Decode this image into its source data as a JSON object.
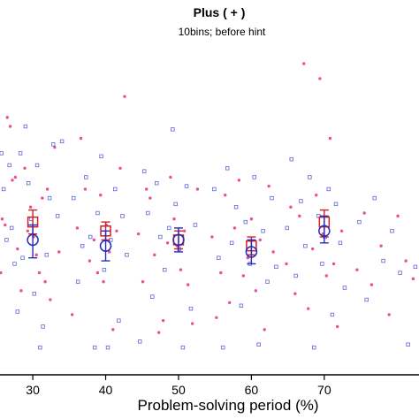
{
  "chart_data": {
    "type": "scatter",
    "title": "Plus ( + )",
    "subtitle": "10bins; before hint",
    "xlabel": "Problem-solving period (%)",
    "ylabel": "",
    "xlim": [
      25.5,
      83
    ],
    "ylim": [
      0,
      1
    ],
    "x_ticks": [
      "30",
      "40",
      "50",
      "60",
      "70"
    ],
    "x_tick_values": [
      30,
      40,
      50,
      60,
      70
    ],
    "grid": false,
    "colors": {
      "red": "#e8307a",
      "blue": "#3540c8",
      "red_marker": "#d0202a",
      "blue_marker": "#2a2ab8"
    },
    "series": [
      {
        "color": "red",
        "marker": "square",
        "summary": [
          {
            "x": 30,
            "y": 0.47,
            "low": 0.43,
            "high": 0.51
          },
          {
            "x": 40,
            "y": 0.44,
            "low": 0.41,
            "high": 0.47
          },
          {
            "x": 50,
            "y": 0.41,
            "low": 0.38,
            "high": 0.44
          },
          {
            "x": 60,
            "y": 0.39,
            "low": 0.36,
            "high": 0.42
          },
          {
            "x": 70,
            "y": 0.47,
            "low": 0.42,
            "high": 0.51
          }
        ],
        "points": [
          [
            25.6,
            0.3
          ],
          [
            25.8,
            0.48
          ],
          [
            26.2,
            0.46
          ],
          [
            26.5,
            0.82
          ],
          [
            26.9,
            0.79
          ],
          [
            27.2,
            0.61
          ],
          [
            27.6,
            0.62
          ],
          [
            27.9,
            0.38
          ],
          [
            28.4,
            0.24
          ],
          [
            28.9,
            0.65
          ],
          [
            29.3,
            0.44
          ],
          [
            29.7,
            0.52
          ],
          [
            30.1,
            0.42
          ],
          [
            30.5,
            0.36
          ],
          [
            30.9,
            0.3
          ],
          [
            31.3,
            0.55
          ],
          [
            31.7,
            0.27
          ],
          [
            32.0,
            0.58
          ],
          [
            32.4,
            0.21
          ],
          [
            33.0,
            0.72
          ],
          [
            33.6,
            0.37
          ],
          [
            35.4,
            0.16
          ],
          [
            36.1,
            0.45
          ],
          [
            36.6,
            0.75
          ],
          [
            37.2,
            0.58
          ],
          [
            37.8,
            0.34
          ],
          [
            38.4,
            0.41
          ],
          [
            38.9,
            0.3
          ],
          [
            39.3,
            0.56
          ],
          [
            39.7,
            0.27
          ],
          [
            40.1,
            0.46
          ],
          [
            40.5,
            0.37
          ],
          [
            41.0,
            0.11
          ],
          [
            41.5,
            0.44
          ],
          [
            42.0,
            0.65
          ],
          [
            42.6,
            0.89
          ],
          [
            44.5,
            0.43
          ],
          [
            45.1,
            0.27
          ],
          [
            45.6,
            0.58
          ],
          [
            46.1,
            0.55
          ],
          [
            46.7,
            0.36
          ],
          [
            47.3,
            0.1
          ],
          [
            47.9,
            0.14
          ],
          [
            48.5,
            0.4
          ],
          [
            48.9,
            0.62
          ],
          [
            49.4,
            0.48
          ],
          [
            49.8,
            0.39
          ],
          [
            50.3,
            0.31
          ],
          [
            50.8,
            0.44
          ],
          [
            51.3,
            0.26
          ],
          [
            51.9,
            0.13
          ],
          [
            52.6,
            0.58
          ],
          [
            54.6,
            0.42
          ],
          [
            55.2,
            0.15
          ],
          [
            55.8,
            0.3
          ],
          [
            56.4,
            0.56
          ],
          [
            57.0,
            0.2
          ],
          [
            57.7,
            0.45
          ],
          [
            58.3,
            0.61
          ],
          [
            58.9,
            0.29
          ],
          [
            59.5,
            0.35
          ],
          [
            60.0,
            0.48
          ],
          [
            60.6,
            0.24
          ],
          [
            61.2,
            0.41
          ],
          [
            61.8,
            0.11
          ],
          [
            62.4,
            0.59
          ],
          [
            63.0,
            0.37
          ],
          [
            64.8,
            0.33
          ],
          [
            65.4,
            0.52
          ],
          [
            66.0,
            0.23
          ],
          [
            66.6,
            0.49
          ],
          [
            67.2,
            1.0
          ],
          [
            67.8,
            0.18
          ],
          [
            68.4,
            0.38
          ],
          [
            68.9,
            0.56
          ],
          [
            69.4,
            0.95
          ],
          [
            69.8,
            0.43
          ],
          [
            70.3,
            0.29
          ],
          [
            70.8,
            0.75
          ],
          [
            71.3,
            0.33
          ],
          [
            71.8,
            0.12
          ],
          [
            72.4,
            0.44
          ],
          [
            74.5,
            0.31
          ],
          [
            75.5,
            0.5
          ],
          [
            76.5,
            0.26
          ],
          [
            77.8,
            0.39
          ],
          [
            78.9,
            0.16
          ],
          [
            80.1,
            0.49
          ],
          [
            81.2,
            0.34
          ],
          [
            82.2,
            0.28
          ]
        ]
      },
      {
        "color": "blue",
        "marker": "circle",
        "summary": [
          {
            "x": 30,
            "y": 0.41,
            "low": 0.35,
            "high": 0.46
          },
          {
            "x": 40,
            "y": 0.39,
            "low": 0.34,
            "high": 0.44
          },
          {
            "x": 50,
            "y": 0.41,
            "low": 0.37,
            "high": 0.45
          },
          {
            "x": 60,
            "y": 0.37,
            "low": 0.33,
            "high": 0.41
          },
          {
            "x": 70,
            "y": 0.44,
            "low": 0.4,
            "high": 0.49
          }
        ],
        "points": [
          [
            25.7,
            0.7
          ],
          [
            26.0,
            0.58
          ],
          [
            26.4,
            0.41
          ],
          [
            26.8,
            0.66
          ],
          [
            27.1,
            0.45
          ],
          [
            27.5,
            0.33
          ],
          [
            27.9,
            0.17
          ],
          [
            28.3,
            0.7
          ],
          [
            28.6,
            0.35
          ],
          [
            29.0,
            0.79
          ],
          [
            29.4,
            0.6
          ],
          [
            29.8,
            0.48
          ],
          [
            30.2,
            0.23
          ],
          [
            30.6,
            0.66
          ],
          [
            31.0,
            0.05
          ],
          [
            31.4,
            0.12
          ],
          [
            31.9,
            0.36
          ],
          [
            32.3,
            0.55
          ],
          [
            32.8,
            0.73
          ],
          [
            33.4,
            0.49
          ],
          [
            34.0,
            0.74
          ],
          [
            35.6,
            0.55
          ],
          [
            36.2,
            0.27
          ],
          [
            36.8,
            0.39
          ],
          [
            37.3,
            0.62
          ],
          [
            37.9,
            0.42
          ],
          [
            38.5,
            0.05
          ],
          [
            38.9,
            0.5
          ],
          [
            39.4,
            0.69
          ],
          [
            39.8,
            0.31
          ],
          [
            40.3,
            0.05
          ],
          [
            40.7,
            0.41
          ],
          [
            41.3,
            0.58
          ],
          [
            41.8,
            0.14
          ],
          [
            42.3,
            0.49
          ],
          [
            42.9,
            0.36
          ],
          [
            44.7,
            0.07
          ],
          [
            45.3,
            0.64
          ],
          [
            45.8,
            0.5
          ],
          [
            46.4,
            0.22
          ],
          [
            47.0,
            0.6
          ],
          [
            47.5,
            0.42
          ],
          [
            48.1,
            0.31
          ],
          [
            48.7,
            0.45
          ],
          [
            49.2,
            0.78
          ],
          [
            49.6,
            0.53
          ],
          [
            50.1,
            0.38
          ],
          [
            50.6,
            0.05
          ],
          [
            51.1,
            0.59
          ],
          [
            51.7,
            0.18
          ],
          [
            52.3,
            0.46
          ],
          [
            54.9,
            0.58
          ],
          [
            55.5,
            0.35
          ],
          [
            56.1,
            0.05
          ],
          [
            56.7,
            0.65
          ],
          [
            57.3,
            0.4
          ],
          [
            57.9,
            0.52
          ],
          [
            58.6,
            0.19
          ],
          [
            59.2,
            0.47
          ],
          [
            59.8,
            0.33
          ],
          [
            60.4,
            0.62
          ],
          [
            61.0,
            0.06
          ],
          [
            61.6,
            0.44
          ],
          [
            62.2,
            0.27
          ],
          [
            62.8,
            0.55
          ],
          [
            63.4,
            0.32
          ],
          [
            64.9,
            0.45
          ],
          [
            65.5,
            0.68
          ],
          [
            66.1,
            0.29
          ],
          [
            66.8,
            0.54
          ],
          [
            67.4,
            0.39
          ],
          [
            68.0,
            0.62
          ],
          [
            68.6,
            0.05
          ],
          [
            69.2,
            0.49
          ],
          [
            69.7,
            0.33
          ],
          [
            70.1,
            0.42
          ],
          [
            70.6,
            0.58
          ],
          [
            71.1,
            0.16
          ],
          [
            71.6,
            0.53
          ],
          [
            72.2,
            0.4
          ],
          [
            72.8,
            0.25
          ],
          [
            74.8,
            0.47
          ],
          [
            75.8,
            0.21
          ],
          [
            76.9,
            0.55
          ],
          [
            78.1,
            0.34
          ],
          [
            79.3,
            0.44
          ],
          [
            80.4,
            0.3
          ],
          [
            81.5,
            0.06
          ],
          [
            82.5,
            0.32
          ]
        ]
      }
    ]
  }
}
